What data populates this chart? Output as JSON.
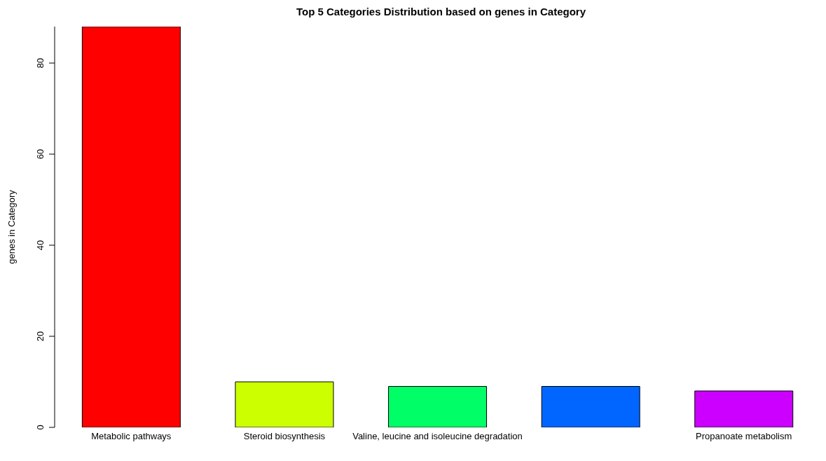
{
  "chart_data": {
    "type": "bar",
    "title": "Top 5 Categories Distribution based on genes in Category",
    "ylabel": "genes in Category",
    "categories": [
      "Metabolic pathways",
      "Steroid biosynthesis",
      "Valine, leucine and isoleucine degradation",
      null,
      "Propanoate metabolism"
    ],
    "values": [
      88,
      10,
      9,
      9,
      8
    ],
    "colors": [
      "#ff0000",
      "#ccff00",
      "#00ff66",
      "#0066ff",
      "#cc00ff"
    ],
    "ylim": [
      0,
      88
    ],
    "yticks": [
      0,
      20,
      40,
      60,
      80
    ],
    "grid": false
  }
}
